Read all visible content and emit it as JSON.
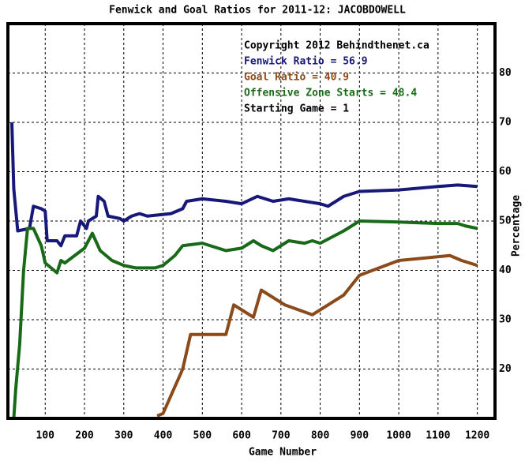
{
  "chart_data": {
    "type": "line",
    "title": "Fenwick and Goal Ratios for 2011-12: JACOBDOWELL",
    "x_label": "Game Number",
    "y_label": "Percentage",
    "annotations": [
      "Copyright 2012 Behindthenet.ca",
      "Starting Game = 1"
    ],
    "xlim": [
      5,
      1245
    ],
    "ylim": [
      10,
      90
    ],
    "xticks": [
      100,
      200,
      300,
      400,
      500,
      600,
      700,
      800,
      900,
      1000,
      1100,
      1200
    ],
    "yticks": [
      20,
      30,
      40,
      50,
      60,
      70,
      80
    ],
    "grid": true,
    "series": [
      {
        "name": "Fenwick Ratio = 56.9",
        "color": "#18187a",
        "x": [
          15,
          20,
          30,
          60,
          70,
          90,
          100,
          105,
          130,
          140,
          150,
          180,
          190,
          205,
          210,
          230,
          235,
          250,
          260,
          290,
          300,
          320,
          340,
          360,
          420,
          450,
          460,
          500,
          560,
          600,
          640,
          680,
          720,
          800,
          820,
          860,
          900,
          1000,
          1100,
          1150,
          1200
        ],
        "values": [
          70,
          56.5,
          48,
          48.5,
          53,
          52.5,
          52,
          46,
          46,
          45,
          47,
          47,
          50,
          48.5,
          50,
          51,
          55,
          54,
          51,
          50.5,
          50,
          51,
          51.5,
          51,
          51.5,
          52.5,
          54,
          54.5,
          54,
          53.5,
          55,
          54,
          54.5,
          53.5,
          53,
          55,
          56,
          56.3,
          57,
          57.3,
          57
        ]
      },
      {
        "name": "Goal Ratio = 40.9",
        "color": "#8b4a1a",
        "x": [
          385,
          400,
          450,
          470,
          560,
          580,
          630,
          650,
          710,
          780,
          860,
          900,
          1000,
          1130,
          1160,
          1200
        ],
        "values": [
          10.5,
          11,
          20,
          27,
          27,
          33,
          30.5,
          36,
          33,
          31,
          35,
          39,
          42,
          43,
          42,
          41
        ]
      },
      {
        "name": "Offensive Zone Starts = 48.4",
        "color": "#186a18",
        "x": [
          20,
          25,
          35,
          45,
          55,
          70,
          90,
          100,
          130,
          140,
          150,
          200,
          220,
          240,
          270,
          300,
          330,
          380,
          400,
          430,
          450,
          500,
          560,
          600,
          630,
          650,
          680,
          720,
          760,
          780,
          800,
          860,
          900,
          1000,
          1100,
          1150,
          1170,
          1200
        ],
        "values": [
          10,
          16,
          25,
          40,
          48.5,
          48.5,
          45,
          41.5,
          39.5,
          42,
          41.5,
          44.5,
          47.5,
          44,
          42,
          41,
          40.5,
          40.5,
          41,
          43,
          45,
          45.5,
          44,
          44.5,
          46,
          45,
          44,
          46,
          45.5,
          46,
          45.5,
          48,
          50,
          49.8,
          49.5,
          49.5,
          49,
          48.5
        ]
      }
    ]
  }
}
